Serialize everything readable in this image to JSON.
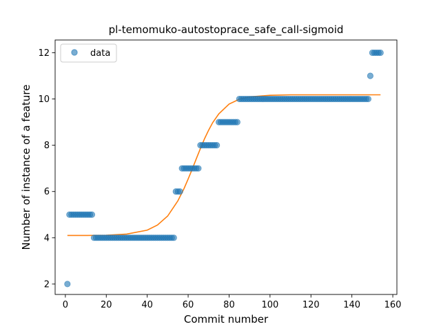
{
  "chart_data": {
    "type": "scatter",
    "title": "pl-temomuko-autostoprace_safe_call-sigmoid",
    "xlabel": "Commit number",
    "ylabel": "Number of instance of a feature",
    "xlim": [
      -5,
      162
    ],
    "ylim": [
      1.55,
      12.55
    ],
    "xticks": [
      0,
      20,
      40,
      60,
      80,
      100,
      120,
      140,
      160
    ],
    "yticks": [
      2,
      4,
      6,
      8,
      10,
      12
    ],
    "grid": false,
    "legend": {
      "placement": "top-left",
      "entries": [
        "data"
      ]
    },
    "colors": {
      "data": "#1f77b4",
      "fit": "#ff7f0e"
    },
    "series": [
      {
        "name": "data",
        "kind": "scatter",
        "x": [
          1,
          2,
          3,
          4,
          5,
          6,
          7,
          8,
          9,
          10,
          11,
          12,
          13,
          14,
          15,
          16,
          17,
          18,
          19,
          20,
          21,
          22,
          23,
          24,
          25,
          26,
          27,
          28,
          29,
          30,
          31,
          32,
          33,
          34,
          35,
          36,
          37,
          38,
          39,
          40,
          41,
          42,
          43,
          44,
          45,
          46,
          47,
          48,
          49,
          50,
          51,
          52,
          53,
          54,
          55,
          56,
          57,
          58,
          59,
          60,
          61,
          62,
          63,
          64,
          65,
          66,
          67,
          68,
          69,
          70,
          71,
          72,
          73,
          74,
          75,
          76,
          77,
          78,
          79,
          80,
          81,
          82,
          83,
          84,
          85,
          86,
          87,
          88,
          89,
          90,
          91,
          92,
          93,
          94,
          95,
          96,
          97,
          98,
          99,
          100,
          101,
          102,
          103,
          104,
          105,
          106,
          107,
          108,
          109,
          110,
          111,
          112,
          113,
          114,
          115,
          116,
          117,
          118,
          119,
          120,
          121,
          122,
          123,
          124,
          125,
          126,
          127,
          128,
          129,
          130,
          131,
          132,
          133,
          134,
          135,
          136,
          137,
          138,
          139,
          140,
          141,
          142,
          143,
          144,
          145,
          146,
          147,
          148,
          149,
          150,
          151,
          152,
          153,
          154
        ],
        "y": [
          2,
          5,
          5,
          5,
          5,
          5,
          5,
          5,
          5,
          5,
          5,
          5,
          5,
          4,
          4,
          4,
          4,
          4,
          4,
          4,
          4,
          4,
          4,
          4,
          4,
          4,
          4,
          4,
          4,
          4,
          4,
          4,
          4,
          4,
          4,
          4,
          4,
          4,
          4,
          4,
          4,
          4,
          4,
          4,
          4,
          4,
          4,
          4,
          4,
          4,
          4,
          4,
          4,
          6,
          6,
          6,
          7,
          7,
          7,
          7,
          7,
          7,
          7,
          7,
          7,
          8,
          8,
          8,
          8,
          8,
          8,
          8,
          8,
          8,
          9,
          9,
          9,
          9,
          9,
          9,
          9,
          9,
          9,
          9,
          10,
          10,
          10,
          10,
          10,
          10,
          10,
          10,
          10,
          10,
          10,
          10,
          10,
          10,
          10,
          10,
          10,
          10,
          10,
          10,
          10,
          10,
          10,
          10,
          10,
          10,
          10,
          10,
          10,
          10,
          10,
          10,
          10,
          10,
          10,
          10,
          10,
          10,
          10,
          10,
          10,
          10,
          10,
          10,
          10,
          10,
          10,
          10,
          10,
          10,
          10,
          10,
          10,
          10,
          10,
          10,
          10,
          10,
          10,
          10,
          10,
          10,
          10,
          10,
          11,
          12,
          12,
          12,
          12,
          12
        ]
      },
      {
        "kind": "line",
        "x": [
          1,
          10,
          20,
          30,
          40,
          45,
          50,
          55,
          58,
          60,
          62,
          64,
          66,
          68,
          70,
          72,
          75,
          80,
          85,
          90,
          100,
          110,
          120,
          130,
          140,
          150,
          154
        ],
        "y": [
          4.1,
          4.1,
          4.11,
          4.16,
          4.33,
          4.55,
          4.94,
          5.6,
          6.13,
          6.54,
          6.97,
          7.42,
          7.86,
          8.28,
          8.65,
          8.98,
          9.36,
          9.78,
          9.99,
          10.09,
          10.16,
          10.18,
          10.18,
          10.18,
          10.18,
          10.18,
          10.18
        ]
      }
    ]
  }
}
